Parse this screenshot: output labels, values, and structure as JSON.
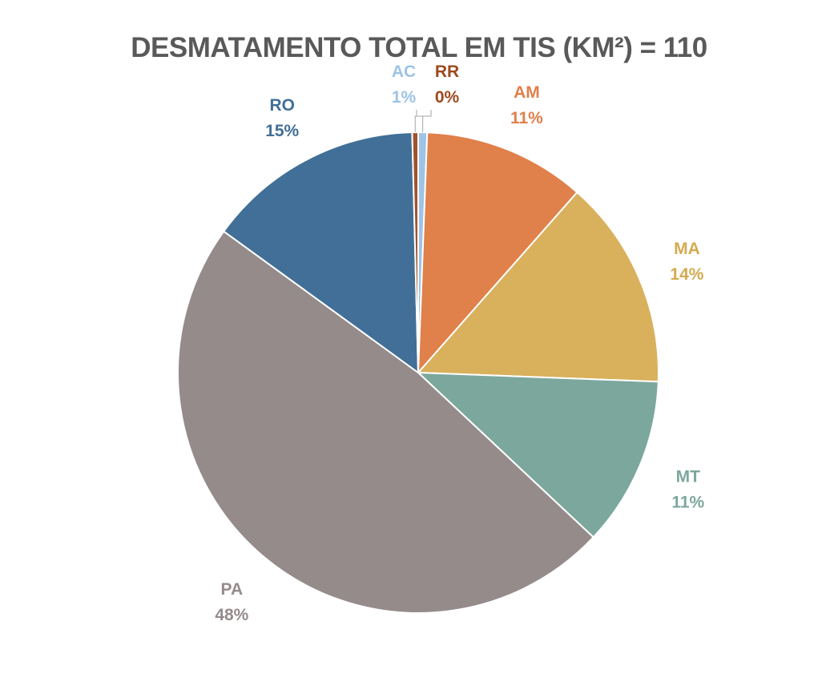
{
  "chart_data": {
    "type": "pie",
    "title": "DESMATAMENTO TOTAL EM TIS (KM²) = 110",
    "slices": [
      {
        "name": "AC",
        "label": "1%",
        "value": 0.6,
        "color": "#9dc3e6"
      },
      {
        "name": "AM",
        "label": "11%",
        "value": 10.9,
        "color": "#e0804a"
      },
      {
        "name": "MA",
        "label": "14%",
        "value": 14.1,
        "color": "#d9b05c"
      },
      {
        "name": "MT",
        "label": "11%",
        "value": 11.4,
        "color": "#7ca79d"
      },
      {
        "name": "PA",
        "label": "48%",
        "value": 48.0,
        "color": "#958b8b"
      },
      {
        "name": "RO",
        "label": "15%",
        "value": 14.6,
        "color": "#416f97"
      },
      {
        "name": "RR",
        "label": "0%",
        "value": 0.4,
        "color": "#a0522d"
      }
    ],
    "start_angle_deg": 0,
    "direction": "clockwise",
    "legend": "none",
    "data_labels": "outside"
  }
}
